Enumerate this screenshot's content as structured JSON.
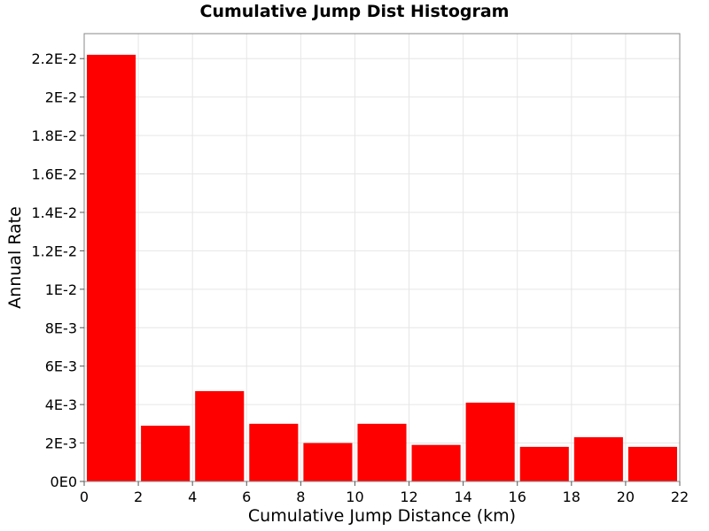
{
  "chart_data": {
    "type": "bar",
    "title": "Cumulative Jump Dist Histogram",
    "xlabel": "Cumulative Jump Distance (km)",
    "ylabel": "Annual Rate",
    "xlim": [
      0,
      22
    ],
    "ylim": [
      0,
      0.0233
    ],
    "x_ticks": [
      0,
      2,
      4,
      6,
      8,
      10,
      12,
      14,
      16,
      18,
      20,
      22
    ],
    "y_ticks": [
      0,
      0.002,
      0.004,
      0.006,
      0.008,
      0.01,
      0.012,
      0.014,
      0.016,
      0.018,
      0.02,
      0.022
    ],
    "y_tick_labels": [
      "0E0",
      "2E-3",
      "4E-3",
      "6E-3",
      "8E-3",
      "1E-2",
      "1.2E-2",
      "1.4E-2",
      "1.6E-2",
      "1.8E-2",
      "2E-2",
      "2.2E-2"
    ],
    "bin_width": 2,
    "bins": [
      {
        "x": 1,
        "value": 0.0222
      },
      {
        "x": 3,
        "value": 0.0029
      },
      {
        "x": 5,
        "value": 0.0047
      },
      {
        "x": 7,
        "value": 0.003
      },
      {
        "x": 9,
        "value": 0.002
      },
      {
        "x": 11,
        "value": 0.003
      },
      {
        "x": 13,
        "value": 0.0019
      },
      {
        "x": 15,
        "value": 0.0041
      },
      {
        "x": 17,
        "value": 0.0018
      },
      {
        "x": 19,
        "value": 0.0023
      },
      {
        "x": 21,
        "value": 0.0018
      }
    ],
    "grid": true,
    "colors": {
      "bar": "#ff0000",
      "grid": "#e6e6e6",
      "axis": "#888888"
    }
  }
}
